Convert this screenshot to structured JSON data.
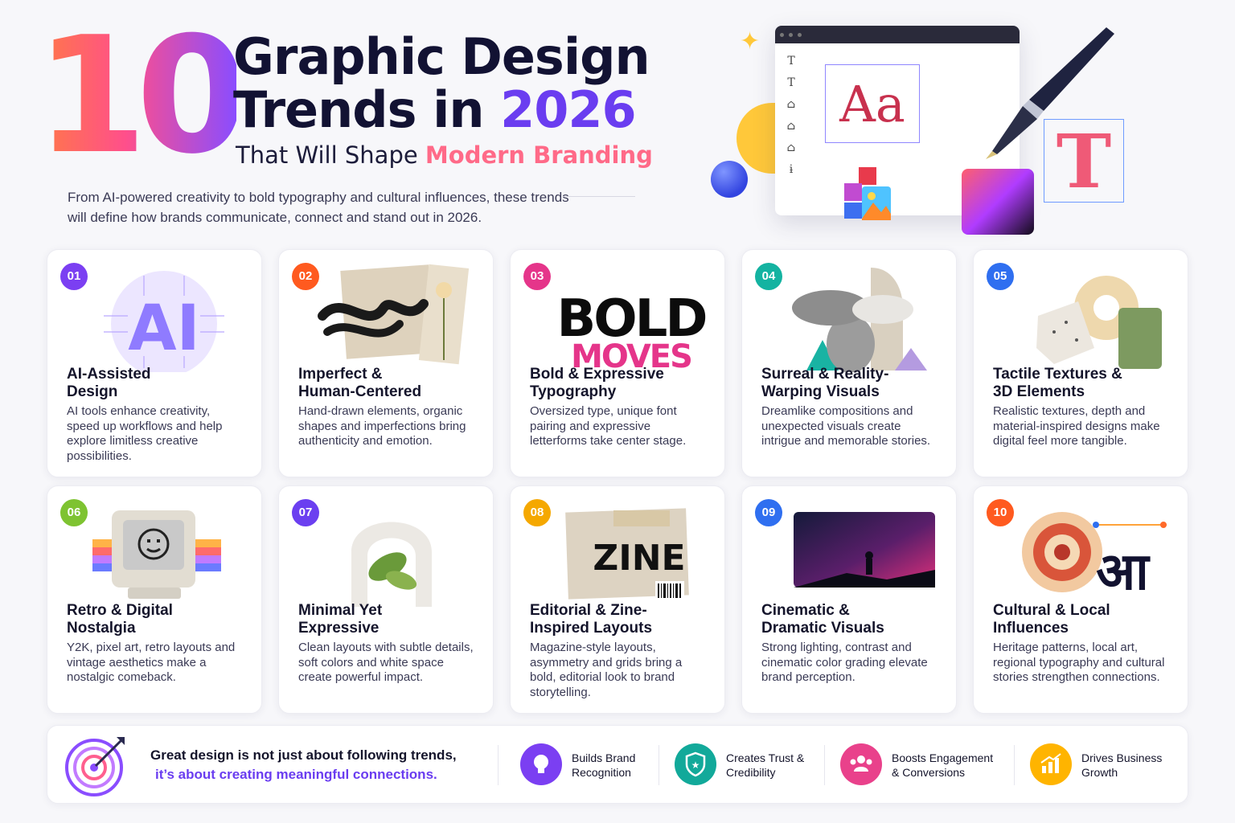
{
  "header": {
    "big_number": "10",
    "title_line1": "Graphic Design",
    "title_line2_prefix": "Trends in ",
    "title_line2_accent": "2026",
    "subtitle_prefix": "That Will Shape ",
    "subtitle_accent": "Modern Branding",
    "intro": "From AI-powered creativity to bold typography and cultural influences, these trends will define how brands communicate, connect and stand out in 2026."
  },
  "hero": {
    "aa_text": "Aa",
    "t_letter": "T",
    "tool_icons": [
      "T",
      "T",
      "⌂",
      "⌂",
      "⌂",
      "ɨ"
    ]
  },
  "trends": [
    {
      "num": "01",
      "badge_color": "#7b3ff2",
      "title": "AI-Assisted\nDesign",
      "desc": "AI tools enhance creativity, speed up workflows and help explore limitless creative possibilities.",
      "art_text": "AI"
    },
    {
      "num": "02",
      "badge_color": "#ff5a1f",
      "title": "Imperfect &\nHuman-Centered",
      "desc": "Hand-drawn elements, organic shapes and imperfections bring authenticity and emotion."
    },
    {
      "num": "03",
      "badge_color": "#e5358a",
      "title": "Bold & Expressive\nTypography",
      "desc": "Oversized type, unique font pairing and expressive letterforms take center stage.",
      "art_line1": "BOLD",
      "art_line2": "MOVES"
    },
    {
      "num": "04",
      "badge_color": "#14b3a1",
      "title": "Surreal & Reality-\nWarping Visuals",
      "desc": "Dreamlike compositions and unexpected visuals create intrigue and memorable stories."
    },
    {
      "num": "05",
      "badge_color": "#2f6ff0",
      "title": "Tactile Textures &\n3D Elements",
      "desc": "Realistic textures, depth and material-inspired designs make digital feel more tangible."
    },
    {
      "num": "06",
      "badge_color": "#7ec331",
      "title": "Retro & Digital\nNostalgia",
      "desc": "Y2K, pixel art, retro layouts and vintage aesthetics make a nostalgic comeback."
    },
    {
      "num": "07",
      "badge_color": "#6b3ff0",
      "title": "Minimal Yet\nExpressive",
      "desc": "Clean layouts with subtle details, soft colors and white space create powerful impact."
    },
    {
      "num": "08",
      "badge_color": "#f5a800",
      "title": "Editorial & Zine-\nInspired Layouts",
      "desc": "Magazine-style layouts, asymmetry and grids bring a bold, editorial look to brand storytelling.",
      "art_text": "ZINE"
    },
    {
      "num": "09",
      "badge_color": "#2f6ff0",
      "title": "Cinematic &\nDramatic Visuals",
      "desc": "Strong lighting, contrast and cinematic color grading elevate brand perception."
    },
    {
      "num": "10",
      "badge_color": "#ff5a1f",
      "title": "Cultural & Local\nInfluences",
      "desc": "Heritage patterns, local art, regional typography and cultural stories strengthen connections.",
      "art_text": "आ"
    }
  ],
  "footer": {
    "quote_line1": "Great design is not just about following trends,",
    "quote_line2": "it’s about creating meaningful connections.",
    "features": [
      {
        "icon": "lightbulb-icon",
        "color": "#7b3ff2",
        "label": "Builds Brand\nRecognition"
      },
      {
        "icon": "shield-star-icon",
        "color": "#12a99a",
        "label": "Creates Trust &\nCredibility"
      },
      {
        "icon": "people-icon",
        "color": "#e9418b",
        "label": "Boosts Engagement\n& Conversions"
      },
      {
        "icon": "growth-chart-icon",
        "color": "#ffb400",
        "label": "Drives Business\nGrowth"
      }
    ]
  }
}
